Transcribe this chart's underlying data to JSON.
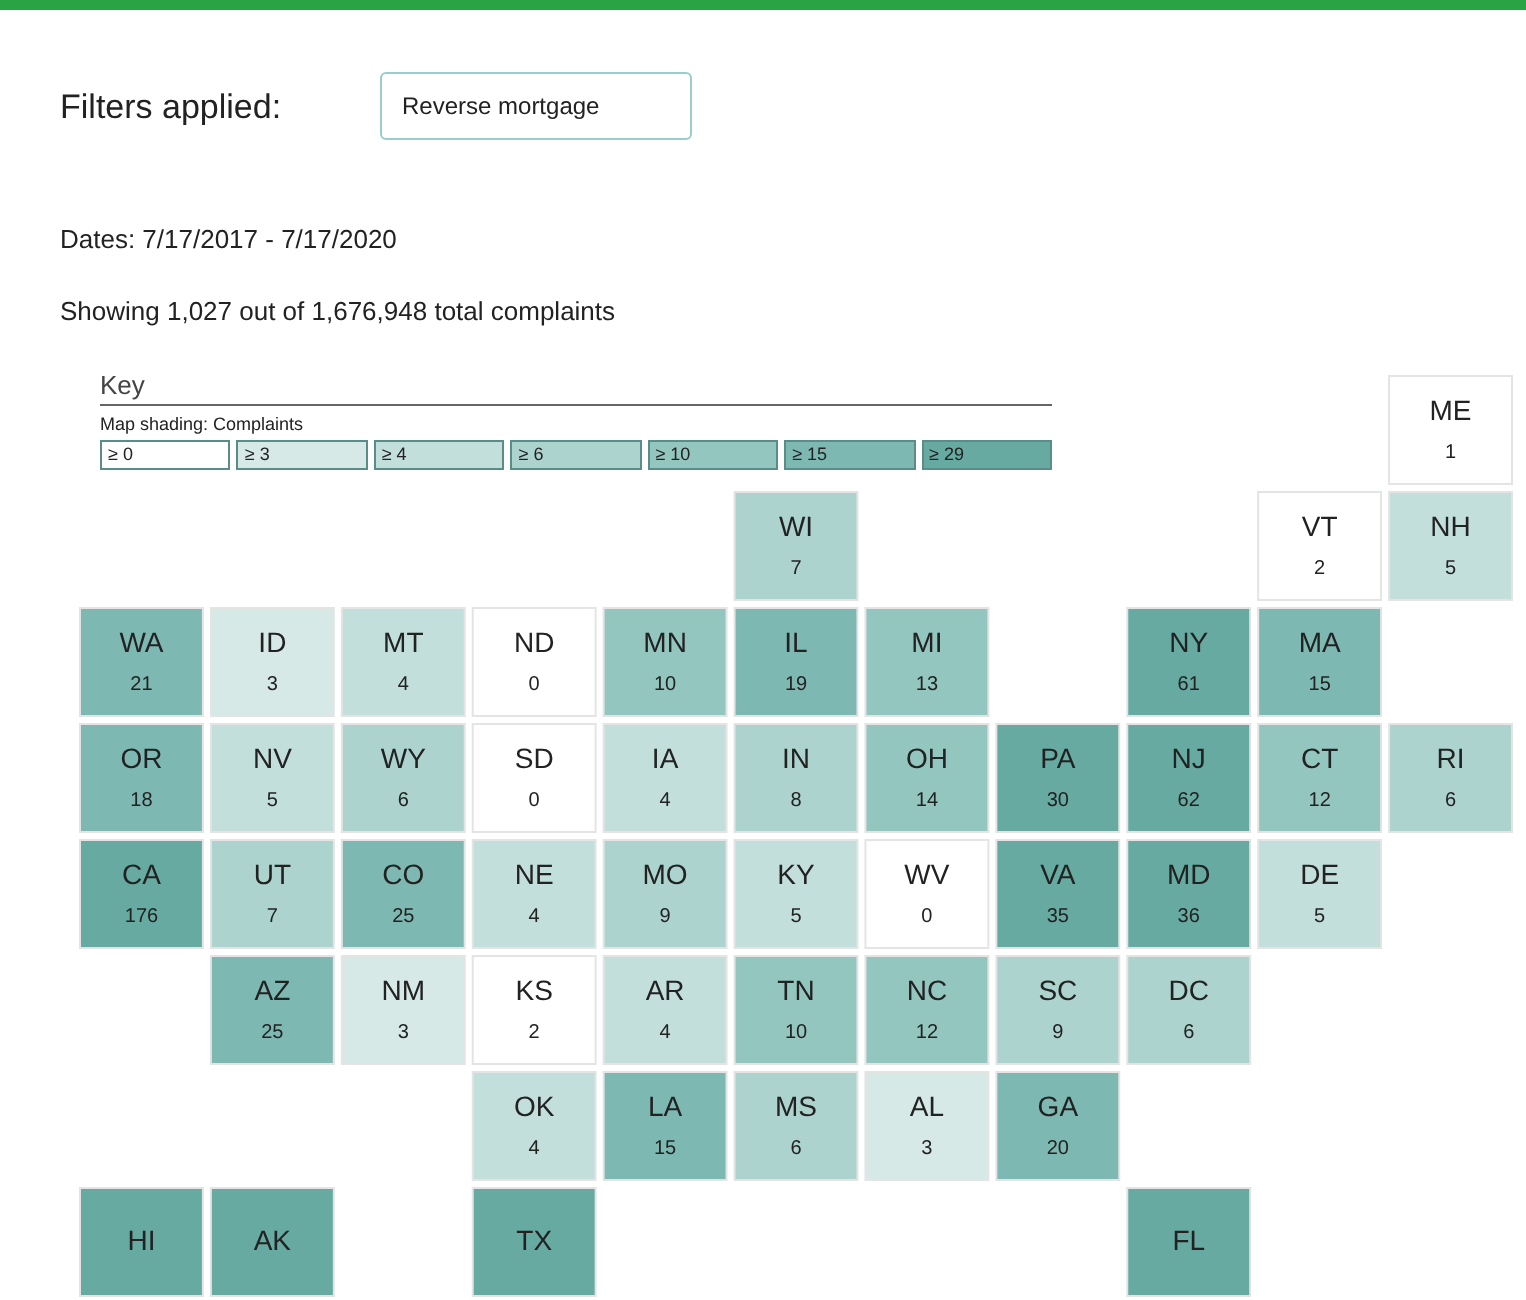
{
  "chart_data": {
    "type": "other",
    "annotations": [
      "Filters applied:",
      "Reverse mortgage",
      "Dates: 7/17/2017 - 7/17/2020",
      "Showing 1,027 out of 1,676,948 total complaints",
      "≥ 0",
      "≥ 3",
      "≥ 4",
      "≥ 6",
      "≥ 10",
      "≥ 15",
      "≥ 29"
    ],
    "data_labels": true,
    "legend_title": "Key",
    "clabel": "Map shading: Complaints",
    "categories": [
      "ME",
      "WI",
      "VT",
      "NH",
      "WA",
      "ID",
      "MT",
      "ND",
      "MN",
      "IL",
      "MI",
      "NY",
      "MA",
      "OR",
      "NV",
      "WY",
      "SD",
      "IA",
      "IN",
      "OH",
      "PA",
      "NJ",
      "CT",
      "RI",
      "CA",
      "UT",
      "CO",
      "NE",
      "MO",
      "KY",
      "WV",
      "VA",
      "MD",
      "DE",
      "AZ",
      "NM",
      "KS",
      "AR",
      "TN",
      "NC",
      "SC",
      "DC",
      "OK",
      "LA",
      "MS",
      "AL",
      "GA",
      "HI",
      "AK",
      "TX",
      "FL"
    ],
    "values": [
      1,
      7,
      2,
      5,
      21,
      3,
      4,
      0,
      10,
      19,
      13,
      61,
      15,
      18,
      5,
      6,
      0,
      4,
      8,
      14,
      30,
      62,
      12,
      6,
      176,
      7,
      25,
      4,
      9,
      5,
      0,
      35,
      36,
      5,
      25,
      3,
      2,
      4,
      10,
      12,
      9,
      6,
      4,
      15,
      6,
      3,
      20,
      null,
      null,
      null,
      null
    ],
    "colors": [
      "#ffffff",
      "#acd3ce",
      "#ffffff",
      "#c2dfdb",
      "#7db9b2",
      "#d6e9e6",
      "#c2dfdb",
      "#ffffff",
      "#94c6c0",
      "#7db9b2",
      "#94c6c0",
      "#66aaa2",
      "#7db9b2",
      "#7db9b2",
      "#c2dfdb",
      "#acd3ce",
      "#ffffff",
      "#c2dfdb",
      "#acd3ce",
      "#94c6c0",
      "#66aaa2",
      "#66aaa2",
      "#94c6c0",
      "#acd3ce",
      "#66aaa2",
      "#acd3ce",
      "#7db9b2",
      "#c2dfdb",
      "#acd3ce",
      "#c2dfdb",
      "#ffffff",
      "#66aaa2",
      "#66aaa2",
      "#c2dfdb",
      "#7db9b2",
      "#d6e9e6",
      "#ffffff",
      "#c2dfdb",
      "#94c6c0",
      "#94c6c0",
      "#acd3ce",
      "#acd3ce",
      "#c2dfdb",
      "#7db9b2",
      "#acd3ce",
      "#d6e9e6",
      "#7db9b2",
      "#66aaa2",
      "#66aaa2",
      "#66aaa2",
      "#66aaa2"
    ]
  }
}
